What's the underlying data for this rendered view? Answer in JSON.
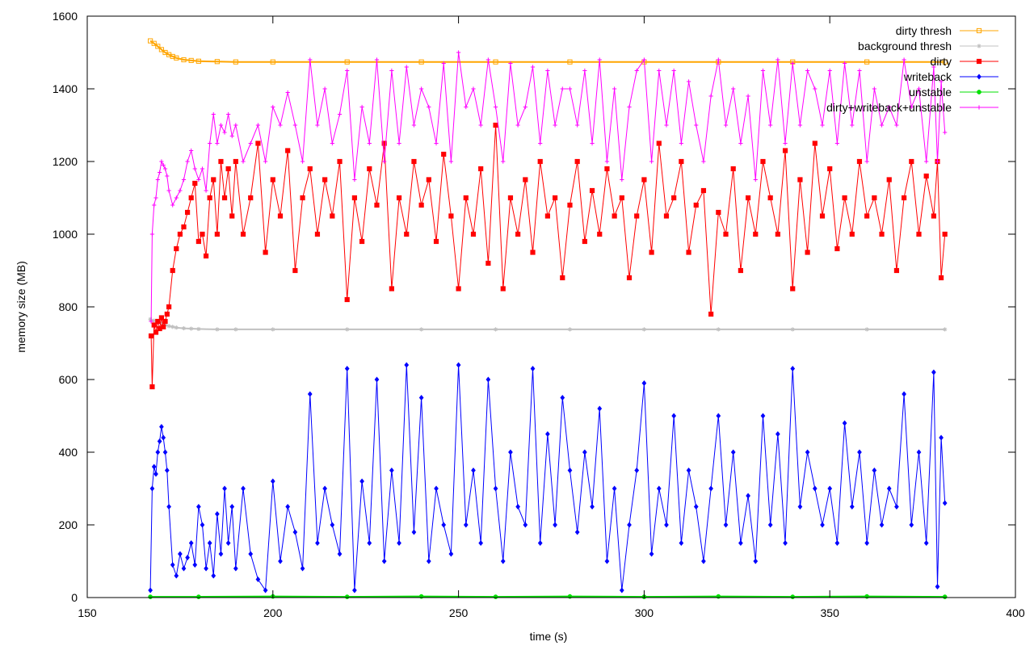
{
  "chart_data": {
    "type": "line",
    "title": "",
    "xlabel": "time (s)",
    "ylabel": "memory size (MB)",
    "xlim": [
      150,
      400
    ],
    "ylim": [
      0,
      1600
    ],
    "xticks": [
      150,
      200,
      250,
      300,
      350,
      400
    ],
    "yticks": [
      0,
      200,
      400,
      600,
      800,
      1000,
      1200,
      1400,
      1600
    ],
    "grid": false,
    "legend_position": "top-right",
    "series": [
      {
        "name": "dirty thresh",
        "color": "#ffa500",
        "marker": "square-open",
        "x": [
          167,
          168,
          169,
          170,
          171,
          172,
          173,
          174,
          176,
          178,
          180,
          185,
          190,
          200,
          220,
          240,
          260,
          280,
          300,
          320,
          340,
          360,
          381
        ],
        "y": [
          1532,
          1525,
          1517,
          1508,
          1500,
          1494,
          1489,
          1485,
          1480,
          1478,
          1476,
          1475,
          1474,
          1474,
          1474,
          1474,
          1474,
          1474,
          1474,
          1474,
          1474,
          1474,
          1474
        ]
      },
      {
        "name": "background thresh",
        "color": "#c0c0c0",
        "marker": "star",
        "x": [
          167,
          168,
          169,
          170,
          171,
          172,
          173,
          174,
          176,
          178,
          180,
          185,
          190,
          200,
          220,
          240,
          260,
          280,
          300,
          320,
          340,
          360,
          381
        ],
        "y": [
          766,
          762,
          758,
          754,
          750,
          747,
          745,
          743,
          741,
          740,
          739,
          738,
          738,
          738,
          738,
          738,
          738,
          738,
          738,
          738,
          738,
          738,
          738
        ]
      },
      {
        "name": "dirty",
        "color": "#ff0000",
        "marker": "square-filled",
        "x": [
          167.2,
          167.5,
          168,
          168.5,
          169,
          169.5,
          170,
          170.5,
          171,
          171.5,
          172,
          173,
          174,
          175,
          176,
          177,
          178,
          179,
          180,
          181,
          182,
          183,
          184,
          185,
          186,
          187,
          188,
          189,
          190,
          192,
          194,
          196,
          198,
          200,
          202,
          204,
          206,
          208,
          210,
          212,
          214,
          216,
          218,
          220,
          222,
          224,
          226,
          228,
          230,
          232,
          234,
          236,
          238,
          240,
          242,
          244,
          246,
          248,
          250,
          252,
          254,
          256,
          258,
          260,
          262,
          264,
          266,
          268,
          270,
          272,
          274,
          276,
          278,
          280,
          282,
          284,
          286,
          288,
          290,
          292,
          294,
          296,
          298,
          300,
          302,
          304,
          306,
          308,
          310,
          312,
          314,
          316,
          318,
          320,
          322,
          324,
          326,
          328,
          330,
          332,
          334,
          336,
          338,
          340,
          342,
          344,
          346,
          348,
          350,
          352,
          354,
          356,
          358,
          360,
          362,
          364,
          366,
          368,
          370,
          372,
          374,
          376,
          378,
          379,
          380,
          381
        ],
        "y": [
          720,
          580,
          750,
          730,
          760,
          740,
          770,
          745,
          760,
          780,
          800,
          900,
          960,
          1000,
          1020,
          1060,
          1100,
          1140,
          980,
          1000,
          940,
          1100,
          1150,
          1000,
          1200,
          1100,
          1180,
          1050,
          1200,
          1000,
          1100,
          1250,
          950,
          1150,
          1050,
          1230,
          900,
          1100,
          1180,
          1000,
          1150,
          1050,
          1200,
          820,
          1100,
          980,
          1180,
          1080,
          1250,
          850,
          1100,
          1000,
          1200,
          1080,
          1150,
          980,
          1220,
          1050,
          850,
          1100,
          1000,
          1180,
          920,
          1300,
          850,
          1100,
          1000,
          1150,
          950,
          1200,
          1050,
          1100,
          880,
          1080,
          1200,
          980,
          1120,
          1000,
          1180,
          1050,
          1100,
          880,
          1050,
          1150,
          950,
          1250,
          1050,
          1100,
          1200,
          950,
          1080,
          1120,
          780,
          1060,
          1000,
          1180,
          900,
          1100,
          1000,
          1200,
          1100,
          1000,
          1230,
          850,
          1150,
          950,
          1250,
          1050,
          1180,
          960,
          1100,
          1000,
          1200,
          1050,
          1100,
          1000,
          1150,
          900,
          1100,
          1200,
          1000,
          1160,
          1050,
          1200,
          880,
          1000
        ]
      },
      {
        "name": "writeback",
        "color": "#0000ff",
        "marker": "diamond",
        "x": [
          167,
          167.5,
          168,
          168.5,
          169,
          169.5,
          170,
          170.5,
          171,
          171.5,
          172,
          173,
          174,
          175,
          176,
          177,
          178,
          179,
          180,
          181,
          182,
          183,
          184,
          185,
          186,
          187,
          188,
          189,
          190,
          192,
          194,
          196,
          198,
          200,
          202,
          204,
          206,
          208,
          210,
          212,
          214,
          216,
          218,
          220,
          222,
          224,
          226,
          228,
          230,
          232,
          234,
          236,
          238,
          240,
          242,
          244,
          246,
          248,
          250,
          252,
          254,
          256,
          258,
          260,
          262,
          264,
          266,
          268,
          270,
          272,
          274,
          276,
          278,
          280,
          282,
          284,
          286,
          288,
          290,
          292,
          294,
          296,
          298,
          300,
          302,
          304,
          306,
          308,
          310,
          312,
          314,
          316,
          318,
          320,
          322,
          324,
          326,
          328,
          330,
          332,
          334,
          336,
          338,
          340,
          342,
          344,
          346,
          348,
          350,
          352,
          354,
          356,
          358,
          360,
          362,
          364,
          366,
          368,
          370,
          372,
          374,
          376,
          378,
          379,
          380,
          381
        ],
        "y": [
          20,
          300,
          360,
          340,
          400,
          430,
          470,
          440,
          400,
          350,
          250,
          90,
          60,
          120,
          80,
          110,
          150,
          90,
          250,
          200,
          80,
          150,
          60,
          230,
          120,
          300,
          150,
          250,
          80,
          300,
          120,
          50,
          20,
          320,
          100,
          250,
          180,
          80,
          560,
          150,
          300,
          200,
          120,
          630,
          20,
          320,
          150,
          600,
          100,
          350,
          150,
          640,
          180,
          550,
          100,
          300,
          200,
          120,
          640,
          200,
          350,
          150,
          600,
          300,
          100,
          400,
          250,
          200,
          630,
          150,
          450,
          200,
          550,
          350,
          180,
          400,
          250,
          520,
          100,
          300,
          20,
          200,
          350,
          590,
          120,
          300,
          200,
          500,
          150,
          350,
          250,
          100,
          300,
          500,
          200,
          400,
          150,
          280,
          100,
          500,
          200,
          450,
          150,
          630,
          250,
          400,
          300,
          200,
          300,
          150,
          480,
          250,
          400,
          150,
          350,
          200,
          300,
          250,
          560,
          200,
          400,
          150,
          620,
          30,
          440,
          260
        ]
      },
      {
        "name": "unstable",
        "color": "#00e000",
        "marker": "circle",
        "x": [
          167,
          180,
          200,
          220,
          240,
          260,
          280,
          300,
          320,
          340,
          360,
          381
        ],
        "y": [
          2,
          2,
          3,
          2,
          3,
          2,
          3,
          2,
          3,
          2,
          3,
          2
        ]
      },
      {
        "name": "dirty+writeback+unstable",
        "color": "#ff00ff",
        "marker": "plus",
        "x": [
          167.2,
          167.5,
          168,
          168.5,
          169,
          169.5,
          170,
          170.5,
          171,
          171.5,
          172,
          173,
          174,
          175,
          176,
          177,
          178,
          179,
          180,
          181,
          182,
          183,
          184,
          185,
          186,
          187,
          188,
          189,
          190,
          192,
          194,
          196,
          198,
          200,
          202,
          204,
          206,
          208,
          210,
          212,
          214,
          216,
          218,
          220,
          222,
          224,
          226,
          228,
          230,
          232,
          234,
          236,
          238,
          240,
          242,
          244,
          246,
          248,
          250,
          252,
          254,
          256,
          258,
          260,
          262,
          264,
          266,
          268,
          270,
          272,
          274,
          276,
          278,
          280,
          282,
          284,
          286,
          288,
          290,
          292,
          294,
          296,
          298,
          300,
          302,
          304,
          306,
          308,
          310,
          312,
          314,
          316,
          318,
          320,
          322,
          324,
          326,
          328,
          330,
          332,
          334,
          336,
          338,
          340,
          342,
          344,
          346,
          348,
          350,
          352,
          354,
          356,
          358,
          360,
          362,
          364,
          366,
          368,
          370,
          372,
          374,
          376,
          378,
          379,
          380,
          381
        ],
        "y": [
          760,
          1000,
          1080,
          1100,
          1150,
          1170,
          1200,
          1190,
          1180,
          1160,
          1120,
          1080,
          1100,
          1120,
          1150,
          1200,
          1230,
          1180,
          1150,
          1180,
          1120,
          1250,
          1330,
          1250,
          1300,
          1280,
          1330,
          1270,
          1300,
          1200,
          1250,
          1300,
          1200,
          1350,
          1300,
          1390,
          1300,
          1200,
          1480,
          1300,
          1400,
          1250,
          1330,
          1450,
          1150,
          1350,
          1250,
          1480,
          1200,
          1450,
          1250,
          1460,
          1300,
          1400,
          1350,
          1250,
          1470,
          1200,
          1500,
          1350,
          1400,
          1300,
          1480,
          1350,
          1200,
          1470,
          1300,
          1350,
          1460,
          1250,
          1450,
          1300,
          1400,
          1400,
          1300,
          1450,
          1250,
          1480,
          1200,
          1400,
          1150,
          1350,
          1450,
          1480,
          1200,
          1450,
          1300,
          1450,
          1250,
          1420,
          1300,
          1200,
          1380,
          1480,
          1300,
          1400,
          1250,
          1380,
          1150,
          1450,
          1300,
          1480,
          1250,
          1470,
          1300,
          1450,
          1400,
          1300,
          1450,
          1250,
          1470,
          1300,
          1450,
          1200,
          1400,
          1300,
          1350,
          1300,
          1480,
          1350,
          1400,
          1200,
          1460,
          1200,
          1420,
          1280
        ]
      }
    ]
  }
}
